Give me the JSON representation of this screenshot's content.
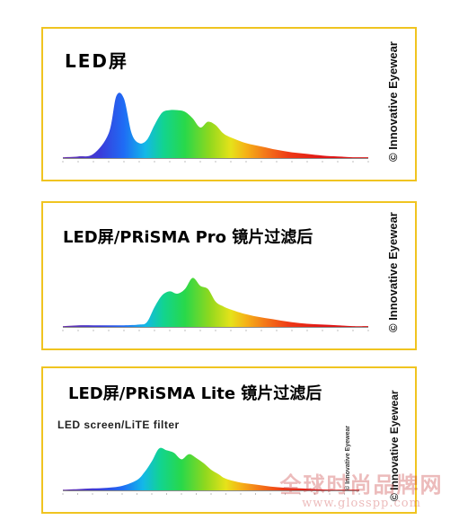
{
  "panels": [
    {
      "title": "LED屏",
      "label": "© Innovative Eyewear"
    },
    {
      "title": "LED屏/PRiSMA Pro 镜片过滤后",
      "label": "© Innovative Eyewear"
    },
    {
      "title": "LED屏/PRiSMA  Lite 镜片过滤后",
      "subtitle": "LED screen/LiTE filter",
      "label": "© Innovative Eyewear",
      "small_label": "© Innovative Eyewear"
    }
  ],
  "watermark": {
    "text": "全球时尚品牌网",
    "url": "www.glosspp.com"
  },
  "chart_data": [
    {
      "type": "area",
      "title": "LED屏",
      "x": [
        380,
        400,
        420,
        440,
        450,
        460,
        470,
        480,
        490,
        500,
        510,
        520,
        530,
        540,
        550,
        560,
        570,
        580,
        590,
        600,
        620,
        640,
        660,
        680,
        700,
        720,
        740,
        760,
        780
      ],
      "values": [
        0.01,
        0.02,
        0.05,
        0.3,
        0.75,
        0.72,
        0.3,
        0.18,
        0.22,
        0.4,
        0.55,
        0.58,
        0.58,
        0.56,
        0.48,
        0.37,
        0.44,
        0.4,
        0.3,
        0.25,
        0.18,
        0.14,
        0.1,
        0.07,
        0.05,
        0.03,
        0.02,
        0.01,
        0.01
      ],
      "ylim": [
        0,
        1
      ]
    },
    {
      "type": "area",
      "title": "LED屏/PRiSMA Pro 镜片过滤后",
      "x": [
        380,
        400,
        420,
        440,
        460,
        480,
        490,
        500,
        510,
        520,
        530,
        540,
        550,
        560,
        570,
        580,
        590,
        600,
        620,
        640,
        660,
        680,
        700,
        720,
        740,
        760,
        780
      ],
      "values": [
        0.01,
        0.02,
        0.02,
        0.02,
        0.02,
        0.03,
        0.06,
        0.25,
        0.4,
        0.45,
        0.42,
        0.48,
        0.62,
        0.52,
        0.48,
        0.32,
        0.26,
        0.22,
        0.16,
        0.12,
        0.09,
        0.06,
        0.04,
        0.03,
        0.02,
        0.01,
        0.01
      ],
      "ylim": [
        0,
        1
      ]
    },
    {
      "type": "area",
      "title": "LED屏/PRiSMA  Lite 镜片过滤后",
      "x": [
        380,
        400,
        420,
        440,
        460,
        480,
        490,
        500,
        510,
        520,
        530,
        540,
        550,
        560,
        570,
        580,
        590,
        600,
        620,
        640,
        660,
        680,
        700,
        720,
        740,
        760,
        780
      ],
      "values": [
        0.01,
        0.02,
        0.03,
        0.04,
        0.07,
        0.16,
        0.28,
        0.45,
        0.65,
        0.62,
        0.58,
        0.48,
        0.56,
        0.5,
        0.42,
        0.32,
        0.25,
        0.18,
        0.12,
        0.09,
        0.06,
        0.04,
        0.03,
        0.02,
        0.01,
        0.01,
        0.01
      ],
      "ylim": [
        0,
        1
      ]
    }
  ]
}
